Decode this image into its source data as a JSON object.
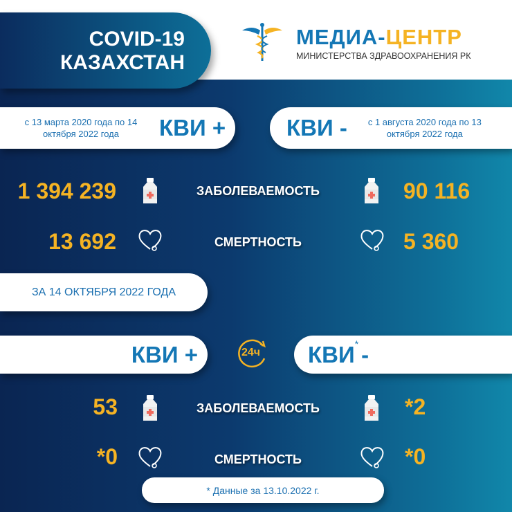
{
  "header": {
    "title_line1": "COVID-19",
    "title_line2": "КАЗАХСТАН",
    "logo_part1": "МЕДИА-",
    "logo_part2": "ЦЕНТР",
    "logo_subtitle": "МИНИСТЕРСТВА ЗДРАВООХРАНЕНИЯ РК"
  },
  "cumulative": {
    "positive": {
      "period": "с 13 марта 2020 года по 14 октября 2022 года",
      "label": "КВИ +",
      "cases": "1 394 239",
      "deaths": "13 692"
    },
    "negative": {
      "period": "с 1 августа 2020 года по 13 октября 2022 года",
      "label": "КВИ -",
      "cases": "90 116",
      "deaths": "5 360"
    },
    "cases_label": "ЗАБОЛЕВАЕМОСТЬ",
    "deaths_label": "СМЕРТНОСТЬ"
  },
  "daily": {
    "date_label": "ЗА 14 ОКТЯБРЯ 2022 ГОДА",
    "badge": "24ч",
    "positive": {
      "label": "КВИ +",
      "cases": "53",
      "deaths": "*0"
    },
    "negative": {
      "label": "КВИ",
      "asterisk": "*",
      "sign": "-",
      "cases": "*2",
      "deaths": "*0"
    },
    "cases_label": "ЗАБОЛЕВАЕМОСТЬ",
    "deaths_label": "СМЕРТНОСТЬ"
  },
  "footnote": "* Данные за 13.10.2022 г.",
  "colors": {
    "accent": "#f5b323",
    "brand_blue": "#1477b5",
    "bg_dark": "#0a2552",
    "bg_teal": "#1187aa"
  },
  "icons": [
    "caduceus-icon",
    "bottle-icon",
    "heart-stethoscope-icon",
    "clock-24-icon"
  ]
}
